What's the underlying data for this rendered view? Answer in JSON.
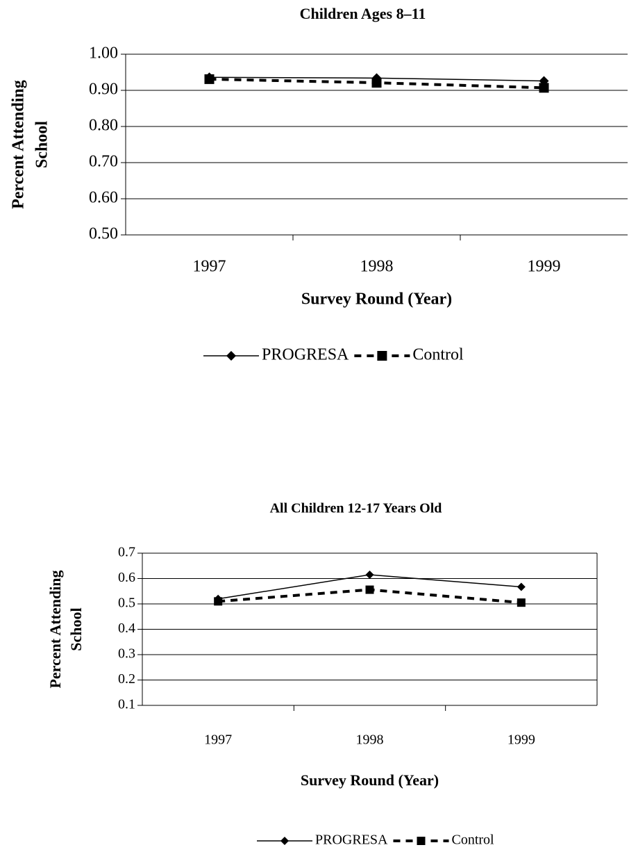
{
  "chart_data": [
    {
      "type": "line",
      "title": "Children Ages 8–11",
      "xlabel": "Survey Round (Year)",
      "ylabel": [
        "Percent Attending",
        "School"
      ],
      "categories": [
        "1997",
        "1998",
        "1999"
      ],
      "series": [
        {
          "name": "PROGRESA",
          "color": "#000000",
          "marker": "diamond",
          "dashed": false,
          "values": [
            0.936,
            0.934,
            0.926
          ]
        },
        {
          "name": "Control",
          "color": "#000000",
          "marker": "square",
          "dashed": true,
          "values": [
            0.931,
            0.921,
            0.907
          ]
        }
      ],
      "ylim": [
        0.5,
        1.0
      ],
      "yticks": [
        {
          "value": 0.5,
          "label": "0.50"
        },
        {
          "value": 0.6,
          "label": "0.60"
        },
        {
          "value": 0.7,
          "label": "0.70"
        },
        {
          "value": 0.8,
          "label": "0.80"
        },
        {
          "value": 0.9,
          "label": "0.90"
        },
        {
          "value": 1.0,
          "label": "1.00"
        }
      ],
      "grid": true,
      "legend": "bottom",
      "box": false
    },
    {
      "type": "line",
      "title": "All Children 12-17 Years Old",
      "xlabel": "Survey Round (Year)",
      "ylabel": [
        "Percent Attending",
        "School"
      ],
      "categories": [
        "1997",
        "1998",
        "1999"
      ],
      "series": [
        {
          "name": "PROGRESA",
          "color": "#000000",
          "marker": "diamond",
          "dashed": false,
          "values": [
            0.52,
            0.615,
            0.567
          ]
        },
        {
          "name": "Control",
          "color": "#000000",
          "marker": "square",
          "dashed": true,
          "values": [
            0.51,
            0.556,
            0.505
          ]
        }
      ],
      "ylim": [
        0.1,
        0.7
      ],
      "yticks": [
        0.1,
        0.2,
        0.3,
        0.4,
        0.5,
        0.6,
        0.7
      ],
      "grid": true,
      "legend": "bottom",
      "box": true
    }
  ]
}
